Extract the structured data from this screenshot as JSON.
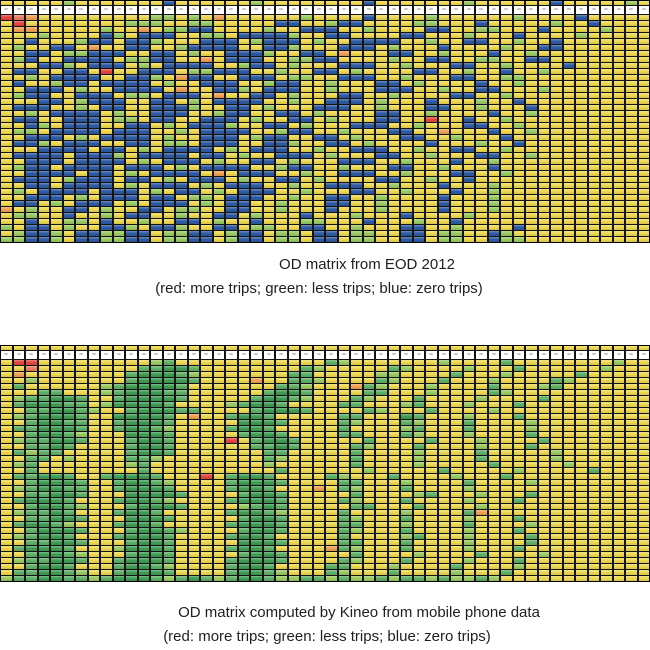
{
  "palette": {
    "Y": "#EFD951",
    "L": "#E9DF76",
    "B": "#2F5BA3",
    "G": "#9BCB63",
    "M": "#5FB167",
    "D": "#3F9E54",
    "R": "#E8463F",
    "r": "#EF7E66",
    "O": "#F0A255",
    "W": "#FFFFFF"
  },
  "legend_colors": {
    "more_trips": "#E8463F",
    "less_trips": "#5FB167",
    "zero_trips": "#2F5BA3"
  },
  "chart_data": [
    {
      "type": "heatmap",
      "id": "od-matrix-eod-2012",
      "caption_line1": "OD matrix from EOD 2012",
      "caption_line2": "(red: more trips; green: less trips; blue: zero trips)",
      "columns": 52,
      "cell_encoding": "run-length: Y yellow(avg trips), B blue(zero trips), G green(less trips), R red(more trips), r light-red, O orange, one letter+count per run, 52 cells per row",
      "partial_row": "Y5G1Y7B1Y6G1Y8B1Y7G1Y6B1Y5G1Y2",
      "rows": [
        "R1r1O1Y9G2Y1G1Y1O1Y6G1Y4B1Y4G1Y6G1Y4B1Y5G1",
        "Y1R1Y8G3Y2G2Y5B2Y2G1B2Y4G2Y3B1Y5G1Y2B1Y4G1",
        "Y1O2Y5G1Y2O1Y1G2B2Y4G1Y2B3Y2G1Y4B2Y2G2Y3B1Y4G1Y2",
        "Y3G1Y4B1G1Y1B3Y2G2Y1B4G1Y2B2Y4B2Y3G1Y3B1Y4G1Y3",
        "Y2B1Y3G1B2Y1B2G1Y3B3Y1G1B3Y1G1Y2B4Y2G1Y2B2Y2G1Y2B1Y2",
        "Y1G1Y2B2Y1O1Y2B2Y2G1B4Y2B2G1Y3B3Y1G1Y3B1Y4G1Y2B2Y3",
        "Y2B2Y1G2B3Y2B2Y1G1Y2B3G1Y2B2Y1O1Y3B2Y2G1Y3B1Y2G1Y3",
        "Y1G1B1Y2B4Y1G2B2Y2O1Y1B3Y2G2B2Y4G1Y2B2Y2G2Y2B2Y4",
        "Y3B2G1Y1B3Y1G1Y1B4Y2G1B2Y1G1Y3B3Y2G1Y3B2Y2G1Y4B1Y1",
        "Y1B2Y2B2Y1R1Y2B3Y1G2B3Y2G1Y2B2Y1G1Y4B2Y2G1Y2B1Y2G1Y4",
        "Y2G1Y1B4Y2B2G1Y1O1B2Y2B3Y1G2Y2B3Y2G1Y3B2Y2G2Y4",
        "Y1B1Y2G1B2Y1B4Y1G1Y2B3Y2G1B2Y2G1Y3B2Y1G1Y4B1Y2G1Y5",
        "Y2B3Y1G1Y2B4Y1O1Y2B2G1Y1B3Y2G1Y3B3Y2G1Y2B2Y3G1Y2",
        "Y1G1B2Y2B3Y1G2Y1B3Y1O1Y2B2Y1G1Y3B2Y2G1Y4B2Y2G1Y4",
        "Y3B2Y1G1B3Y2B2Y1G1Y1B4Y2G1Y2B3Y1G1Y3B1Y3G1Y2B1Y4",
        "Y1B3Y2G1Y1B2Y2B3G1Y2B2Y1G1Y3B3Y2G1Y3B2Y2G1Y3B1Y3",
        "Y2G1Y1B4Y1G1Y2B3Y2G1B2Y2B2Y1G1Y4B2Y2G1Y4B1Y2G1Y2",
        "Y1B2Y2B3Y1G2Y1B2Y2B3Y1G1Y2B2Y1G1Y3B2Y2R1Y2B1Y2G1Y4",
        "Y2B1G1Y1B3Y2B2Y1G1Y1B3G1Y2B2Y1G1Y3B3Y2G1Y3B2Y2G1Y3",
        "Y1G2Y1B4Y1B3Y2G1Y1B4Y2G1B2Y2G1Y3B2Y2O1Y3B1Y2G1Y3",
        "Y2B3Y1G1Y1B4Y1G1Y2B3Y1G1B2Y2B2Y1G1Y3B2Y2G1Y3B1Y3",
        "Y1B2G1Y1B3Y2B2Y1G2Y1B3Y2B2G1Y2B2Y1G1Y4B1Y3G1Y2B1Y3",
        "Y3B4Y1B2Y1G1Y1B4Y1G1Y1B3Y2G1Y2B3Y2G1Y2B2Y2G1Y4",
        "Y1B4Y1B3G1Y1B4Y1B2Y1G1Y2B3Y1G1Y3B2Y2G1Y3B2Y2G1Y2",
        "Y2B3Y1B4Y1G1Y1B3Y1G1Y2B2Y1G1Y3B3Y2G1Y3B1Y2G1Y4",
        "Y1G1B2Y1B4Y1B3Y1G1Y1B4Y2G1B2Y2G1Y3B2Y2G1Y3B1Y4",
        "Y2B4Y1B2Y1G1Y1B4Y1O1Y1B3Y2G1Y2B3Y2G1Y3B2Y2G1Y2",
        "Y1B3Y1G1B3Y1B2Y1G1Y1B3Y1G1Y2B2Y1G1Y4B2Y2G1Y2B1Y4",
        "Y2B2Y1B4Y1G1Y1B3Y1G1Y1B3Y2G1Y2B3Y2G1Y3B1Y3G1Y2",
        "Y1G1Y1B4Y1B3Y1G1Y1B2Y1G1Y1B3Y2G1Y3B2Y2G1Y3B1Y2G1Y3",
        "Y2B3Y1G1Y1B3Y1B2Y1G2Y1B3Y2G1Y2B2Y2G1Y4B1Y3G1Y3",
        "Y1B2Y1G1Y1B3Y1G1Y1B3Y1G1Y1B2Y2G1Y3B2Y2G1Y4B1Y3G1Y2",
        "O1Y1G1Y2B2Y1G1Y2B2Y1G2Y2B2Y2G1Y3B1Y3G1Y4B1Y3G1Y4",
        "Y1G2Y2B1Y2G1Y1B2Y2G1Y2B2Y1G1Y3B1Y3G1Y3B1Y4G1Y5",
        "Y2B1Y2G2Y1B1Y2G1Y2B2Y1G1Y2B1Y3G2Y3B1Y3G1Y2B1Y5",
        "G1Y1B2Y1G1Y2B2G1Y1B2G1Y2B2Y1G2Y2B2Y2G1Y3B2Y2G1Y4B1Y3",
        "Y1G1B2G1Y1B2G2B2Y1G2B2Y1G1B2Y1G2Y1B2Y1G2Y2B2Y1G2Y2B1G1Y3",
        "G2B2G1Y1B2G2B2Y1G2B2Y1G1B2Y1G2Y1B2Y1G2Y2B2Y1G2Y2B1G2Y3"
      ]
    },
    {
      "type": "heatmap",
      "id": "od-matrix-kineo",
      "caption_line1": "OD matrix computed by Kineo from mobile phone data",
      "caption_line2": "(red: more trips; green: less trips; blue: zero trips)",
      "columns": 52,
      "cell_encoding": "run-length: Y yellow(avg trips), M medium-green, D dark-green, G light-green(less trips), R red(more trips), r light-red, O orange, 52 cells per row",
      "partial_row": "Y52",
      "rows": [
        "Y1R2Y9G1M1Y12M1G1Y7G1Y4M1Y8G1Y2",
        "Y2r1Y8M2D2M1Y8M1G1Y5M1G1Y4G1Y3M1Y6G1Y2",
        "Y1O1Y8M1D3M1G1Y7M2Y5G2Y4M1Y3G1Y5M1Y3",
        "Y2G1Y7M1D4M1Y4O1Y2M2G1Y4M1G1Y3M1Y3G1Y4M1G1Y3",
        "Y1M1Y6G1M1D4M1Y7M2G1Y3O1M1G1Y3G1Y4M1Y3G1M1Y4",
        "Y3M2Y3G1M1D3M2Y6M1D2M1Y4M2Y3G1Y4M1G1Y5",
        "Y1G1M2D2M1Y2M1D4M1Y5M1D2M1G1Y3M1G1Y3M1Y4G1Y4M1Y2",
        "Y1M1D3M2Y1G1D4M1Y4G1M1D2M1Y4M2Y3G1M1Y3G1Y3M1Y3",
        "Y2M2D2M1G1Y2M1D3M2Y4M1D3M1Y4M1G1Y3M1Y4G1Y4",
        "Y1G1M1D3M1Y2D4M1Y1O1Y2M1D2M1Y5M2Y3D1M1Y3G1Y3M1Y2",
        "Y2M1D2M2Y2M1D3M1Y5D3M1Y4M1G1Y3M1G1Y3M1Y4G1Y2",
        "Y1M2D3M1Y2M1D2M1G1Y4M1D2M1Y5M1Y4G1M1Y3M1Y4G1Y2",
        "Y2M1D2M1G1Y3D3M1Y5M1D2M1Y4M2Y3M1G1Y3G1Y4M1Y3",
        "Y1G1M2D2M1Y3M1D2M1Y4R1Y1M1D2M1Y5M1Y4M1Y3G1Y4M1Y2",
        "Y2M2D1M1Y4M1D2M1Y6M2D1M1Y4M1G1Y3M1Y4G1Y3M1Y2",
        "Y1M1G1M2Y5M1D2M1Y7M2Y5M1Y4G1Y4M1Y5G1Y2",
        "Y2M2Y1G1Y4M2G1Y8M1G1Y5M1Y4G1Y4M1Y5G1Y2",
        "Y1G1M1Y7G1M1Y9G1Y6M1Y4G1Y5M1Y5G1Y3",
        "Y2M1Y8M1Y10M1Y6G1Y5M1Y5G1Y5M1Y2",
        "Y1M2D2M1Y2M1D3M1Y3R1Y1M1D2M1Y4M1G1Y3M1Y4G1Y3M1Y3",
        "Y2M1D3M1Y2M1D2M1G1Y4M1D3M1Y4M2Y3G1Y4M1Y4G1Y2",
        "Y1G1M1D2M2Y2M1D3M1Y4M1D2M1Y3O1Y1M1G1Y3M1Y4G1Y4",
        "Y2M2D2M1Y3D4M1Y4M1D2M1Y5M1Y4G1M1Y3G1Y3M1Y2",
        "Y1M1D3M1Y3M1D2M1G1Y4M1D3M1Y4M1G1Y3M1Y4G1Y3M1Y2",
        "Y2M1D2M1G1Y3M1D3M1Y4G1M1D1M1Y5M2Y3M1Y4G1Y4",
        "Y1G1M2D1M1Y3M1D2M1Y5M1D2M1G1Y4M1Y4G1Y4M1O1Y3",
        "Y2M2D2M1Y3D3M1Y5M1D2M1Y4M1G1Y3M1Y4G1Y3M1Y2",
        "Y1M1D2M1G1Y3M1D2M1Y5M1D3M1Y4M2Y3G1Y4M1Y4G1Y2",
        "Y2M1D3M1Y3M1D2M1G1Y4M1D2M1Y4M1G1Y3M1Y4G1Y3M1Y2",
        "Y1G1M1D2M1Y3M1D3M1Y4M1D2M1Y5M1Y4G1M1Y3G1Y4M1Y2",
        "Y2M2D2M1Y3M1D2M1Y5D3M1Y4M2Y3M1Y4G1Y4M1Y1",
        "Y1M1D3M1Y3G1D3M1Y4M1D2M1Y4O1M1G1Y3M1Y4G1Y3M1Y2",
        "Y2M1D2M1G1Y3M1D2M1Y5M1D2M1Y5M1Y4G1Y4M1Y4G1Y2",
        "Y1G1M2D2M1Y2M1D3M1Y4M1D3M1Y4M1G1Y3M1Y4G1Y3M1Y2",
        "Y2M1D2M1Y3M1D2M1G1Y4M1D2M1Y4M2Y3G1Y4M1Y4G1Y2",
        "Y1M2D2M1G1Y2M1D3M1Y4M1D2M1G1Y3M1G1Y3M1Y4G1Y3M1Y2",
        "G1M2D2M2G1M1D3M1G1M1D1M1G1M1D2M1G2M2G1M1G2M1G1M2G1M1G2M1G1"
      ]
    }
  ]
}
